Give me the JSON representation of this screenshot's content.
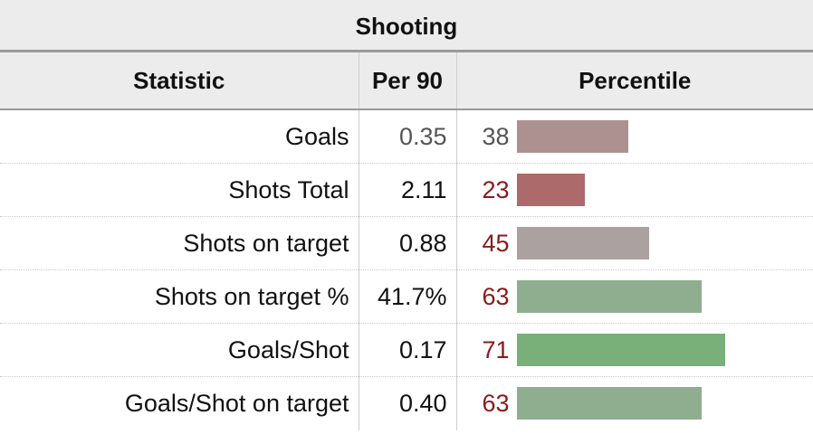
{
  "section": {
    "title": "Shooting"
  },
  "columns": {
    "statistic": "Statistic",
    "per90": "Per 90",
    "percentile": "Percentile"
  },
  "rows": [
    {
      "name": "Goals",
      "per90": "0.35",
      "percentile": "38",
      "percentile_value": 38,
      "bar_color": "#ad9191",
      "muted": true
    },
    {
      "name": "Shots Total",
      "per90": "2.11",
      "percentile": "23",
      "percentile_value": 23,
      "bar_color": "#ad6a6a",
      "muted": false
    },
    {
      "name": "Shots on target",
      "per90": "0.88",
      "percentile": "45",
      "percentile_value": 45,
      "bar_color": "#aca1a1",
      "muted": false
    },
    {
      "name": "Shots on target %",
      "per90": "41.7%",
      "percentile": "63",
      "percentile_value": 63,
      "bar_color": "#8fae8f",
      "muted": false
    },
    {
      "name": "Goals/Shot",
      "per90": "0.17",
      "percentile": "71",
      "percentile_value": 71,
      "bar_color": "#79af79",
      "muted": false
    },
    {
      "name": "Goals/Shot on target",
      "per90": "0.40",
      "percentile": "63",
      "percentile_value": 63,
      "bar_color": "#8fae8f",
      "muted": false
    }
  ]
}
